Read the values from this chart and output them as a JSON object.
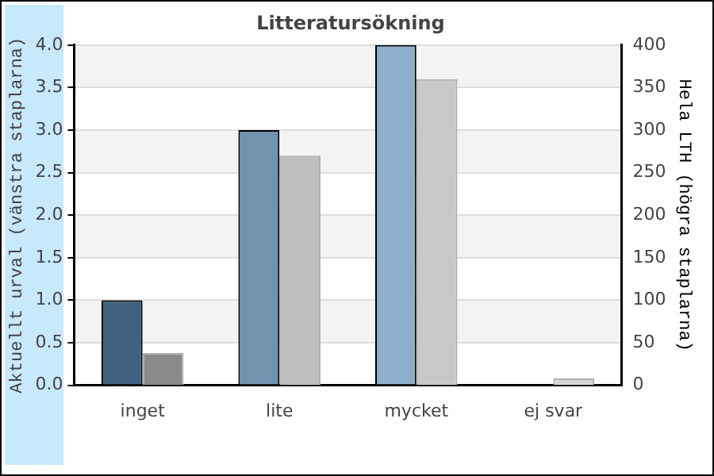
{
  "chart_data": {
    "type": "bar",
    "title": "Litteratursökning",
    "ylabel": "Aktuellt urval (vänstra staplarna)",
    "y2label": "Hela LTH (högra staplarna)",
    "categories": [
      "inget",
      "lite",
      "mycket",
      "ej svar"
    ],
    "series": [
      {
        "colors": [
          "#40617f",
          "#7292ae",
          "#8fb0cc",
          "#b0c8dc"
        ],
        "values": [
          1,
          3,
          4,
          0
        ]
      },
      {
        "axis": "y2",
        "colors": [
          "#8a8a8a",
          "#bebebe",
          "#c8c8c8",
          "#d6d6d6"
        ],
        "values": [
          38,
          270,
          360,
          8
        ]
      }
    ],
    "ylim": [
      0,
      4
    ],
    "yticks": [
      {
        "value": 0,
        "label": "0.0"
      },
      {
        "value": 0.5,
        "label": "0.5"
      },
      {
        "value": 1,
        "label": "1.0"
      },
      {
        "value": 1.5,
        "label": "1.5"
      },
      {
        "value": 2,
        "label": "2.0"
      },
      {
        "value": 2.5,
        "label": "2.5"
      },
      {
        "value": 3,
        "label": "3.0"
      },
      {
        "value": 3.5,
        "label": "3.5"
      },
      {
        "value": 4,
        "label": "4.0"
      }
    ],
    "y2lim": [
      0,
      400
    ],
    "y2ticks": [
      0,
      50,
      100,
      150,
      200,
      250,
      300,
      350,
      400
    ],
    "grid": "y",
    "legend": false
  }
}
